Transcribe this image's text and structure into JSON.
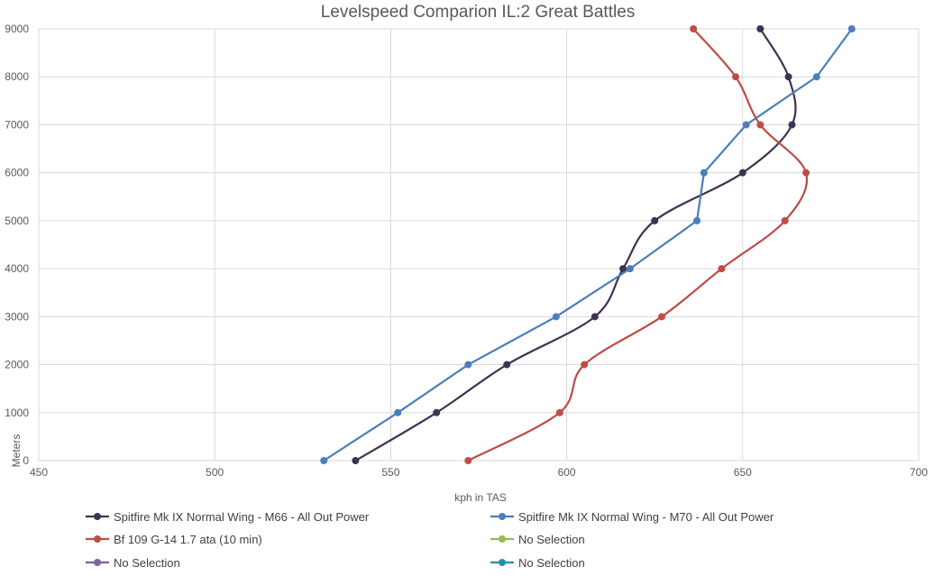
{
  "chart_data": {
    "type": "line",
    "title": "Levelspeed Comparion IL:2 Great Battles",
    "xlabel": "kph in TAS",
    "ylabel": "Meters",
    "xlim": [
      450,
      700
    ],
    "ylim": [
      0,
      9000
    ],
    "x_ticks": [
      "450",
      "500",
      "550",
      "600",
      "650",
      "700"
    ],
    "y_ticks": [
      "0",
      "1000",
      "2000",
      "3000",
      "4000",
      "5000",
      "6000",
      "7000",
      "8000",
      "9000"
    ],
    "grid": true,
    "legend_position": "bottom",
    "series": [
      {
        "name": "Spitfire Mk IX Normal Wing - M66 - All Out Power",
        "color": "#403151",
        "points": [
          [
            540,
            0
          ],
          [
            563,
            1000
          ],
          [
            583,
            2000
          ],
          [
            608,
            3000
          ],
          [
            616,
            4000
          ],
          [
            625,
            5000
          ],
          [
            650,
            6000
          ],
          [
            664,
            7000
          ],
          [
            663,
            8000
          ],
          [
            655,
            9000
          ]
        ]
      },
      {
        "name": "Spitfire Mk IX Normal Wing - M70 - All Out Power",
        "color": "#4a7ebb",
        "points": [
          [
            531,
            0
          ],
          [
            552,
            1000
          ],
          [
            572,
            2000
          ],
          [
            597,
            3000
          ],
          [
            618,
            4000
          ],
          [
            637,
            5000
          ],
          [
            639,
            6000
          ],
          [
            651,
            7000
          ],
          [
            671,
            8000
          ],
          [
            681,
            9000
          ]
        ]
      },
      {
        "name": "Bf 109 G-14 1.7 ata (10 min)",
        "color": "#be4b48",
        "points": [
          [
            572,
            0
          ],
          [
            598,
            1000
          ],
          [
            605,
            2000
          ],
          [
            627,
            3000
          ],
          [
            644,
            4000
          ],
          [
            662,
            5000
          ],
          [
            668,
            6000
          ],
          [
            655,
            7000
          ],
          [
            648,
            8000
          ],
          [
            636,
            9000
          ]
        ]
      },
      {
        "name": "No Selection",
        "color": "#98b954",
        "points": []
      },
      {
        "name": "No Selection",
        "color": "#7d60a0",
        "points": []
      },
      {
        "name": "No Selection",
        "color": "#2c8ea3",
        "points": []
      }
    ]
  }
}
